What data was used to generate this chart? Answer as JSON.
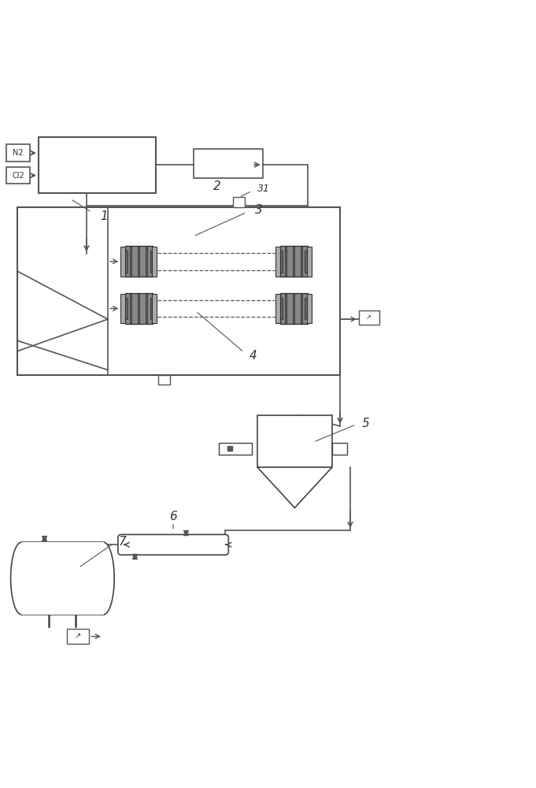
{
  "bg_color": "#ffffff",
  "line_color": "#555555",
  "dark_color": "#333333",
  "gray_fill": "#888888",
  "figsize": [
    6.81,
    10.0
  ],
  "dpi": 100
}
